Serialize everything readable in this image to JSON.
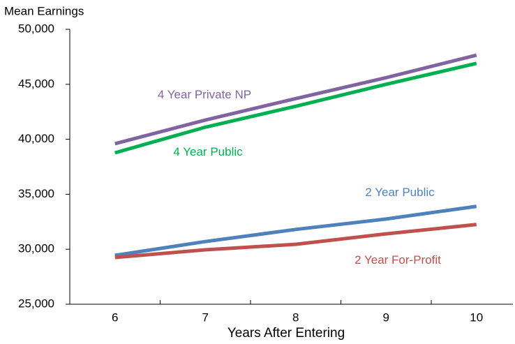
{
  "chart_data": {
    "type": "line",
    "y_label": "Mean Earnings",
    "x_label": "Years After Entering",
    "categories": [
      "6",
      "7",
      "8",
      "9",
      "10"
    ],
    "ylim": [
      25000,
      50000
    ],
    "yticks": [
      {
        "value": 25000,
        "label": "25,000"
      },
      {
        "value": 30000,
        "label": "30,000"
      },
      {
        "value": 35000,
        "label": "35,000"
      },
      {
        "value": 40000,
        "label": "40,000"
      },
      {
        "value": 45000,
        "label": "45,000"
      },
      {
        "value": 50000,
        "label": "50,000"
      }
    ],
    "grid": false,
    "series": [
      {
        "name": "4 Year Private NP",
        "color": "#8064a2",
        "values": [
          39600,
          41750,
          43700,
          45600,
          47650
        ]
      },
      {
        "name": "4 Year Public",
        "color": "#00b050",
        "values": [
          38770,
          41100,
          43000,
          45000,
          46900
        ]
      },
      {
        "name": "2 Year Public",
        "color": "#4f81bd",
        "values": [
          29440,
          30700,
          31800,
          32750,
          33900
        ]
      },
      {
        "name": "2 Year For-Profit",
        "color": "#c0504d",
        "values": [
          29250,
          29950,
          30450,
          31400,
          32250
        ]
      }
    ]
  }
}
